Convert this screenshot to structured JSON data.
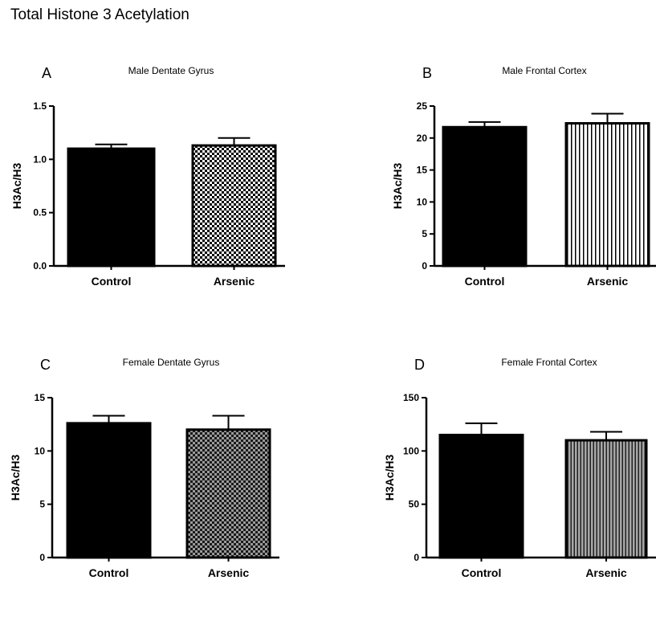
{
  "figure": {
    "title": "Total Histone 3 Acetylation"
  },
  "chart_data": [
    {
      "type": "bar",
      "panel": "A",
      "title": "Male Dentate Gyrus",
      "ylabel": "H3Ac/H3",
      "xlabel": "",
      "categories": [
        "Control",
        "Arsenic"
      ],
      "values": [
        1.1,
        1.13
      ],
      "errors": [
        0.04,
        0.07
      ],
      "ylim": [
        0,
        1.5
      ],
      "yticks": [
        0.0,
        0.5,
        1.0,
        1.5
      ],
      "ytick_labels": [
        "0.0",
        "0.5",
        "1.0",
        "1.5"
      ],
      "patterns": [
        "solid",
        "checker-fine"
      ],
      "grid": false
    },
    {
      "type": "bar",
      "panel": "B",
      "title": "Male Frontal Cortex",
      "ylabel": "H3Ac/H3",
      "xlabel": "",
      "categories": [
        "Control",
        "Arsenic"
      ],
      "values": [
        21.7,
        22.3
      ],
      "errors": [
        0.8,
        1.5
      ],
      "ylim": [
        0,
        25
      ],
      "yticks": [
        0,
        5,
        10,
        15,
        20,
        25
      ],
      "ytick_labels": [
        "0",
        "5",
        "10",
        "15",
        "20",
        "25"
      ],
      "patterns": [
        "solid",
        "vertical-lines"
      ],
      "grid": false
    },
    {
      "type": "bar",
      "panel": "C",
      "title": "Female Dentate Gyrus",
      "ylabel": "H3Ac/H3",
      "xlabel": "",
      "categories": [
        "Control",
        "Arsenic"
      ],
      "values": [
        12.6,
        12.0
      ],
      "errors": [
        0.7,
        1.3
      ],
      "ylim": [
        0,
        15
      ],
      "yticks": [
        0,
        5,
        10,
        15
      ],
      "ytick_labels": [
        "0",
        "5",
        "10",
        "15"
      ],
      "patterns": [
        "solid",
        "checker-dark"
      ],
      "grid": false
    },
    {
      "type": "bar",
      "panel": "D",
      "title": "Female Frontal Cortex",
      "ylabel": "H3Ac/H3",
      "xlabel": "",
      "categories": [
        "Control",
        "Arsenic"
      ],
      "values": [
        115,
        110
      ],
      "errors": [
        11,
        8
      ],
      "ylim": [
        0,
        150
      ],
      "yticks": [
        0,
        50,
        100,
        150
      ],
      "ytick_labels": [
        "0",
        "50",
        "100",
        "150"
      ],
      "patterns": [
        "solid",
        "gray-lines"
      ],
      "grid": false
    }
  ]
}
